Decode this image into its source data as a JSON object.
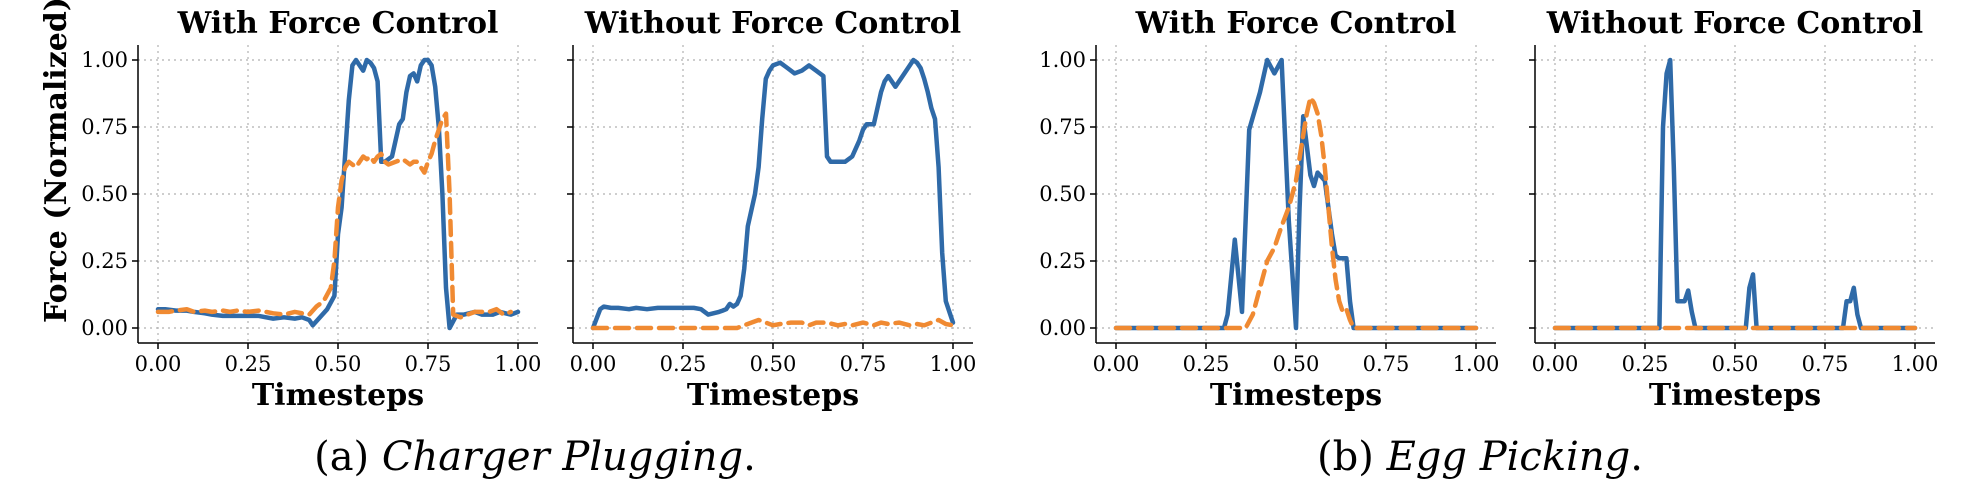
{
  "figure": {
    "ylabel": "Force (Normalized)",
    "captions": [
      {
        "prefix": "(a) ",
        "name": "Charger Plugging",
        "suffix": "."
      },
      {
        "prefix": "(b) ",
        "name": "Egg Picking",
        "suffix": "."
      }
    ]
  },
  "colors": {
    "series_blue": "#2f6aa8",
    "series_orange": "#f08a32"
  },
  "chart_data": [
    {
      "type": "line",
      "group": "Charger Plugging",
      "title": "With Force Control",
      "xlabel": "Timesteps",
      "ylabel": "Force (Normalized)",
      "xlim": [
        0,
        1
      ],
      "ylim": [
        -0.05,
        1.05
      ],
      "xticks": [
        "0.00",
        "0.25",
        "0.50",
        "0.75",
        "1.00"
      ],
      "yticks": [
        "0.00",
        "0.25",
        "0.50",
        "0.75",
        "1.00"
      ],
      "grid": true,
      "series": [
        {
          "style": "solid",
          "color": "#2f6aa8",
          "x": [
            0,
            0.02,
            0.05,
            0.08,
            0.1,
            0.13,
            0.15,
            0.18,
            0.2,
            0.22,
            0.25,
            0.28,
            0.3,
            0.32,
            0.35,
            0.38,
            0.4,
            0.42,
            0.43,
            0.45,
            0.47,
            0.49,
            0.5,
            0.51,
            0.52,
            0.53,
            0.54,
            0.55,
            0.56,
            0.57,
            0.58,
            0.59,
            0.6,
            0.61,
            0.62,
            0.63,
            0.65,
            0.66,
            0.67,
            0.68,
            0.69,
            0.7,
            0.71,
            0.72,
            0.73,
            0.74,
            0.75,
            0.76,
            0.77,
            0.78,
            0.79,
            0.8,
            0.81,
            0.83,
            0.85,
            0.88,
            0.9,
            0.93,
            0.95,
            0.98,
            1.0
          ],
          "y": [
            0.07,
            0.07,
            0.065,
            0.065,
            0.06,
            0.055,
            0.05,
            0.045,
            0.045,
            0.045,
            0.045,
            0.045,
            0.04,
            0.035,
            0.04,
            0.035,
            0.04,
            0.03,
            0.01,
            0.04,
            0.07,
            0.12,
            0.35,
            0.45,
            0.65,
            0.85,
            0.98,
            1.0,
            0.98,
            0.96,
            1.0,
            0.99,
            0.97,
            0.92,
            0.62,
            0.62,
            0.64,
            0.7,
            0.76,
            0.78,
            0.88,
            0.94,
            0.95,
            0.92,
            0.98,
            1.0,
            1.0,
            0.98,
            0.9,
            0.75,
            0.5,
            0.15,
            0.0,
            0.05,
            0.05,
            0.06,
            0.05,
            0.05,
            0.06,
            0.05,
            0.06
          ]
        },
        {
          "style": "dashed",
          "color": "#f08a32",
          "x": [
            0,
            0.03,
            0.05,
            0.08,
            0.1,
            0.13,
            0.15,
            0.18,
            0.2,
            0.22,
            0.25,
            0.28,
            0.3,
            0.32,
            0.35,
            0.38,
            0.4,
            0.42,
            0.44,
            0.46,
            0.48,
            0.49,
            0.5,
            0.51,
            0.52,
            0.53,
            0.54,
            0.55,
            0.56,
            0.57,
            0.58,
            0.59,
            0.6,
            0.61,
            0.62,
            0.63,
            0.64,
            0.66,
            0.68,
            0.7,
            0.71,
            0.72,
            0.73,
            0.74,
            0.75,
            0.76,
            0.77,
            0.78,
            0.79,
            0.8,
            0.81,
            0.82,
            0.84,
            0.86,
            0.88,
            0.9,
            0.92,
            0.94,
            0.96,
            0.98
          ],
          "y": [
            0.06,
            0.06,
            0.065,
            0.07,
            0.06,
            0.065,
            0.06,
            0.065,
            0.06,
            0.065,
            0.06,
            0.065,
            0.06,
            0.055,
            0.05,
            0.06,
            0.055,
            0.05,
            0.08,
            0.1,
            0.15,
            0.25,
            0.45,
            0.55,
            0.6,
            0.62,
            0.61,
            0.6,
            0.62,
            0.64,
            0.63,
            0.64,
            0.62,
            0.64,
            0.65,
            0.62,
            0.61,
            0.62,
            0.63,
            0.61,
            0.62,
            0.62,
            0.6,
            0.58,
            0.62,
            0.65,
            0.7,
            0.74,
            0.78,
            0.8,
            0.5,
            0.05,
            0.04,
            0.05,
            0.06,
            0.06,
            0.06,
            0.07,
            0.05,
            0.06
          ]
        }
      ]
    },
    {
      "type": "line",
      "group": "Charger Plugging",
      "title": "Without Force Control",
      "xlabel": "Timesteps",
      "xlim": [
        0,
        1
      ],
      "ylim": [
        -0.05,
        1.05
      ],
      "xticks": [
        "0.00",
        "0.25",
        "0.50",
        "0.75",
        "1.00"
      ],
      "yticks": [
        "0.00",
        "0.25",
        "0.50",
        "0.75",
        "1.00"
      ],
      "grid": true,
      "series": [
        {
          "style": "solid",
          "color": "#2f6aa8",
          "x": [
            0,
            0.02,
            0.03,
            0.05,
            0.07,
            0.1,
            0.12,
            0.15,
            0.18,
            0.2,
            0.22,
            0.25,
            0.28,
            0.3,
            0.32,
            0.35,
            0.36,
            0.37,
            0.38,
            0.39,
            0.4,
            0.41,
            0.42,
            0.43,
            0.44,
            0.45,
            0.46,
            0.47,
            0.48,
            0.49,
            0.5,
            0.52,
            0.54,
            0.56,
            0.58,
            0.6,
            0.62,
            0.64,
            0.65,
            0.66,
            0.68,
            0.7,
            0.72,
            0.74,
            0.75,
            0.76,
            0.78,
            0.79,
            0.8,
            0.81,
            0.82,
            0.83,
            0.84,
            0.86,
            0.88,
            0.89,
            0.9,
            0.91,
            0.92,
            0.93,
            0.94,
            0.95,
            0.96,
            0.97,
            0.98,
            1.0
          ],
          "y": [
            0,
            0.07,
            0.08,
            0.075,
            0.075,
            0.07,
            0.075,
            0.07,
            0.075,
            0.075,
            0.075,
            0.075,
            0.075,
            0.07,
            0.05,
            0.06,
            0.065,
            0.07,
            0.09,
            0.08,
            0.09,
            0.12,
            0.22,
            0.38,
            0.44,
            0.5,
            0.6,
            0.78,
            0.93,
            0.96,
            0.98,
            0.99,
            0.97,
            0.95,
            0.96,
            0.98,
            0.96,
            0.94,
            0.64,
            0.62,
            0.62,
            0.62,
            0.64,
            0.7,
            0.74,
            0.76,
            0.76,
            0.82,
            0.88,
            0.92,
            0.94,
            0.92,
            0.9,
            0.94,
            0.98,
            1.0,
            0.99,
            0.97,
            0.93,
            0.88,
            0.82,
            0.78,
            0.6,
            0.28,
            0.1,
            0.02
          ]
        },
        {
          "style": "dashed",
          "color": "#f08a32",
          "x": [
            0,
            0.05,
            0.1,
            0.15,
            0.2,
            0.25,
            0.3,
            0.35,
            0.4,
            0.42,
            0.44,
            0.46,
            0.48,
            0.5,
            0.52,
            0.55,
            0.58,
            0.6,
            0.62,
            0.65,
            0.68,
            0.7,
            0.72,
            0.75,
            0.78,
            0.8,
            0.82,
            0.85,
            0.88,
            0.9,
            0.92,
            0.94,
            0.96,
            0.98,
            1.0
          ],
          "y": [
            0,
            0,
            0,
            0,
            0,
            0,
            0,
            0,
            0,
            0.01,
            0.02,
            0.03,
            0.02,
            0.01,
            0.015,
            0.02,
            0.02,
            0.01,
            0.02,
            0.02,
            0.01,
            0.015,
            0.01,
            0.02,
            0.01,
            0.02,
            0.015,
            0.02,
            0.01,
            0.015,
            0.01,
            0.02,
            0.03,
            0.015,
            0.01
          ]
        }
      ]
    },
    {
      "type": "line",
      "group": "Egg Picking",
      "title": "With Force Control",
      "xlabel": "Timesteps",
      "xlim": [
        0,
        1
      ],
      "ylim": [
        -0.05,
        1.05
      ],
      "xticks": [
        "0.00",
        "0.25",
        "0.50",
        "0.75",
        "1.00"
      ],
      "yticks": [
        "0.00",
        "0.25",
        "0.50",
        "0.75",
        "1.00"
      ],
      "grid": true,
      "series": [
        {
          "style": "solid",
          "color": "#2f6aa8",
          "x": [
            0,
            0.1,
            0.2,
            0.3,
            0.31,
            0.33,
            0.35,
            0.37,
            0.4,
            0.42,
            0.44,
            0.46,
            0.48,
            0.5,
            0.51,
            0.52,
            0.53,
            0.54,
            0.55,
            0.56,
            0.58,
            0.59,
            0.6,
            0.61,
            0.62,
            0.63,
            0.64,
            0.65,
            0.66,
            0.67,
            0.7,
            0.8,
            0.9,
            1.0
          ],
          "y": [
            0,
            0,
            0,
            0,
            0.05,
            0.33,
            0.06,
            0.74,
            0.88,
            1.0,
            0.95,
            1.0,
            0.4,
            0.0,
            0.45,
            0.79,
            0.68,
            0.57,
            0.53,
            0.58,
            0.55,
            0.45,
            0.35,
            0.27,
            0.26,
            0.26,
            0.26,
            0.1,
            0.0,
            0.0,
            0,
            0,
            0,
            0
          ]
        },
        {
          "style": "dashed",
          "color": "#f08a32",
          "x": [
            0,
            0.1,
            0.2,
            0.3,
            0.36,
            0.38,
            0.4,
            0.42,
            0.44,
            0.46,
            0.48,
            0.5,
            0.52,
            0.53,
            0.54,
            0.55,
            0.56,
            0.57,
            0.58,
            0.59,
            0.6,
            0.61,
            0.62,
            0.63,
            0.64,
            0.65,
            0.66,
            0.7,
            0.8,
            0.9,
            1.0
          ],
          "y": [
            0,
            0,
            0,
            0,
            0,
            0.05,
            0.15,
            0.25,
            0.3,
            0.38,
            0.45,
            0.55,
            0.72,
            0.8,
            0.86,
            0.84,
            0.8,
            0.72,
            0.6,
            0.45,
            0.3,
            0.18,
            0.1,
            0.06,
            0.07,
            0.03,
            0.0,
            0,
            0,
            0,
            0
          ]
        }
      ]
    },
    {
      "type": "line",
      "group": "Egg Picking",
      "title": "Without Force Control",
      "xlabel": "Timesteps",
      "xlim": [
        0,
        1
      ],
      "ylim": [
        -0.05,
        1.05
      ],
      "xticks": [
        "0.00",
        "0.25",
        "0.50",
        "0.75",
        "1.00"
      ],
      "yticks": [
        "0.00",
        "0.25",
        "0.50",
        "0.75",
        "1.00"
      ],
      "grid": true,
      "series": [
        {
          "style": "solid",
          "color": "#2f6aa8",
          "x": [
            0,
            0.1,
            0.2,
            0.29,
            0.3,
            0.31,
            0.32,
            0.33,
            0.34,
            0.35,
            0.36,
            0.37,
            0.38,
            0.39,
            0.4,
            0.5,
            0.53,
            0.54,
            0.55,
            0.56,
            0.6,
            0.7,
            0.8,
            0.81,
            0.82,
            0.83,
            0.84,
            0.85,
            0.9,
            1.0
          ],
          "y": [
            0,
            0,
            0,
            0,
            0.75,
            0.95,
            1.0,
            0.6,
            0.1,
            0.1,
            0.1,
            0.14,
            0.06,
            0.0,
            0,
            0,
            0,
            0.15,
            0.2,
            0.0,
            0,
            0,
            0,
            0.1,
            0.1,
            0.15,
            0.05,
            0.0,
            0,
            0
          ]
        },
        {
          "style": "dashed",
          "color": "#f08a32",
          "x": [
            0,
            0.25,
            0.5,
            0.75,
            1.0
          ],
          "y": [
            0,
            0,
            0,
            0,
            0
          ]
        }
      ]
    }
  ]
}
